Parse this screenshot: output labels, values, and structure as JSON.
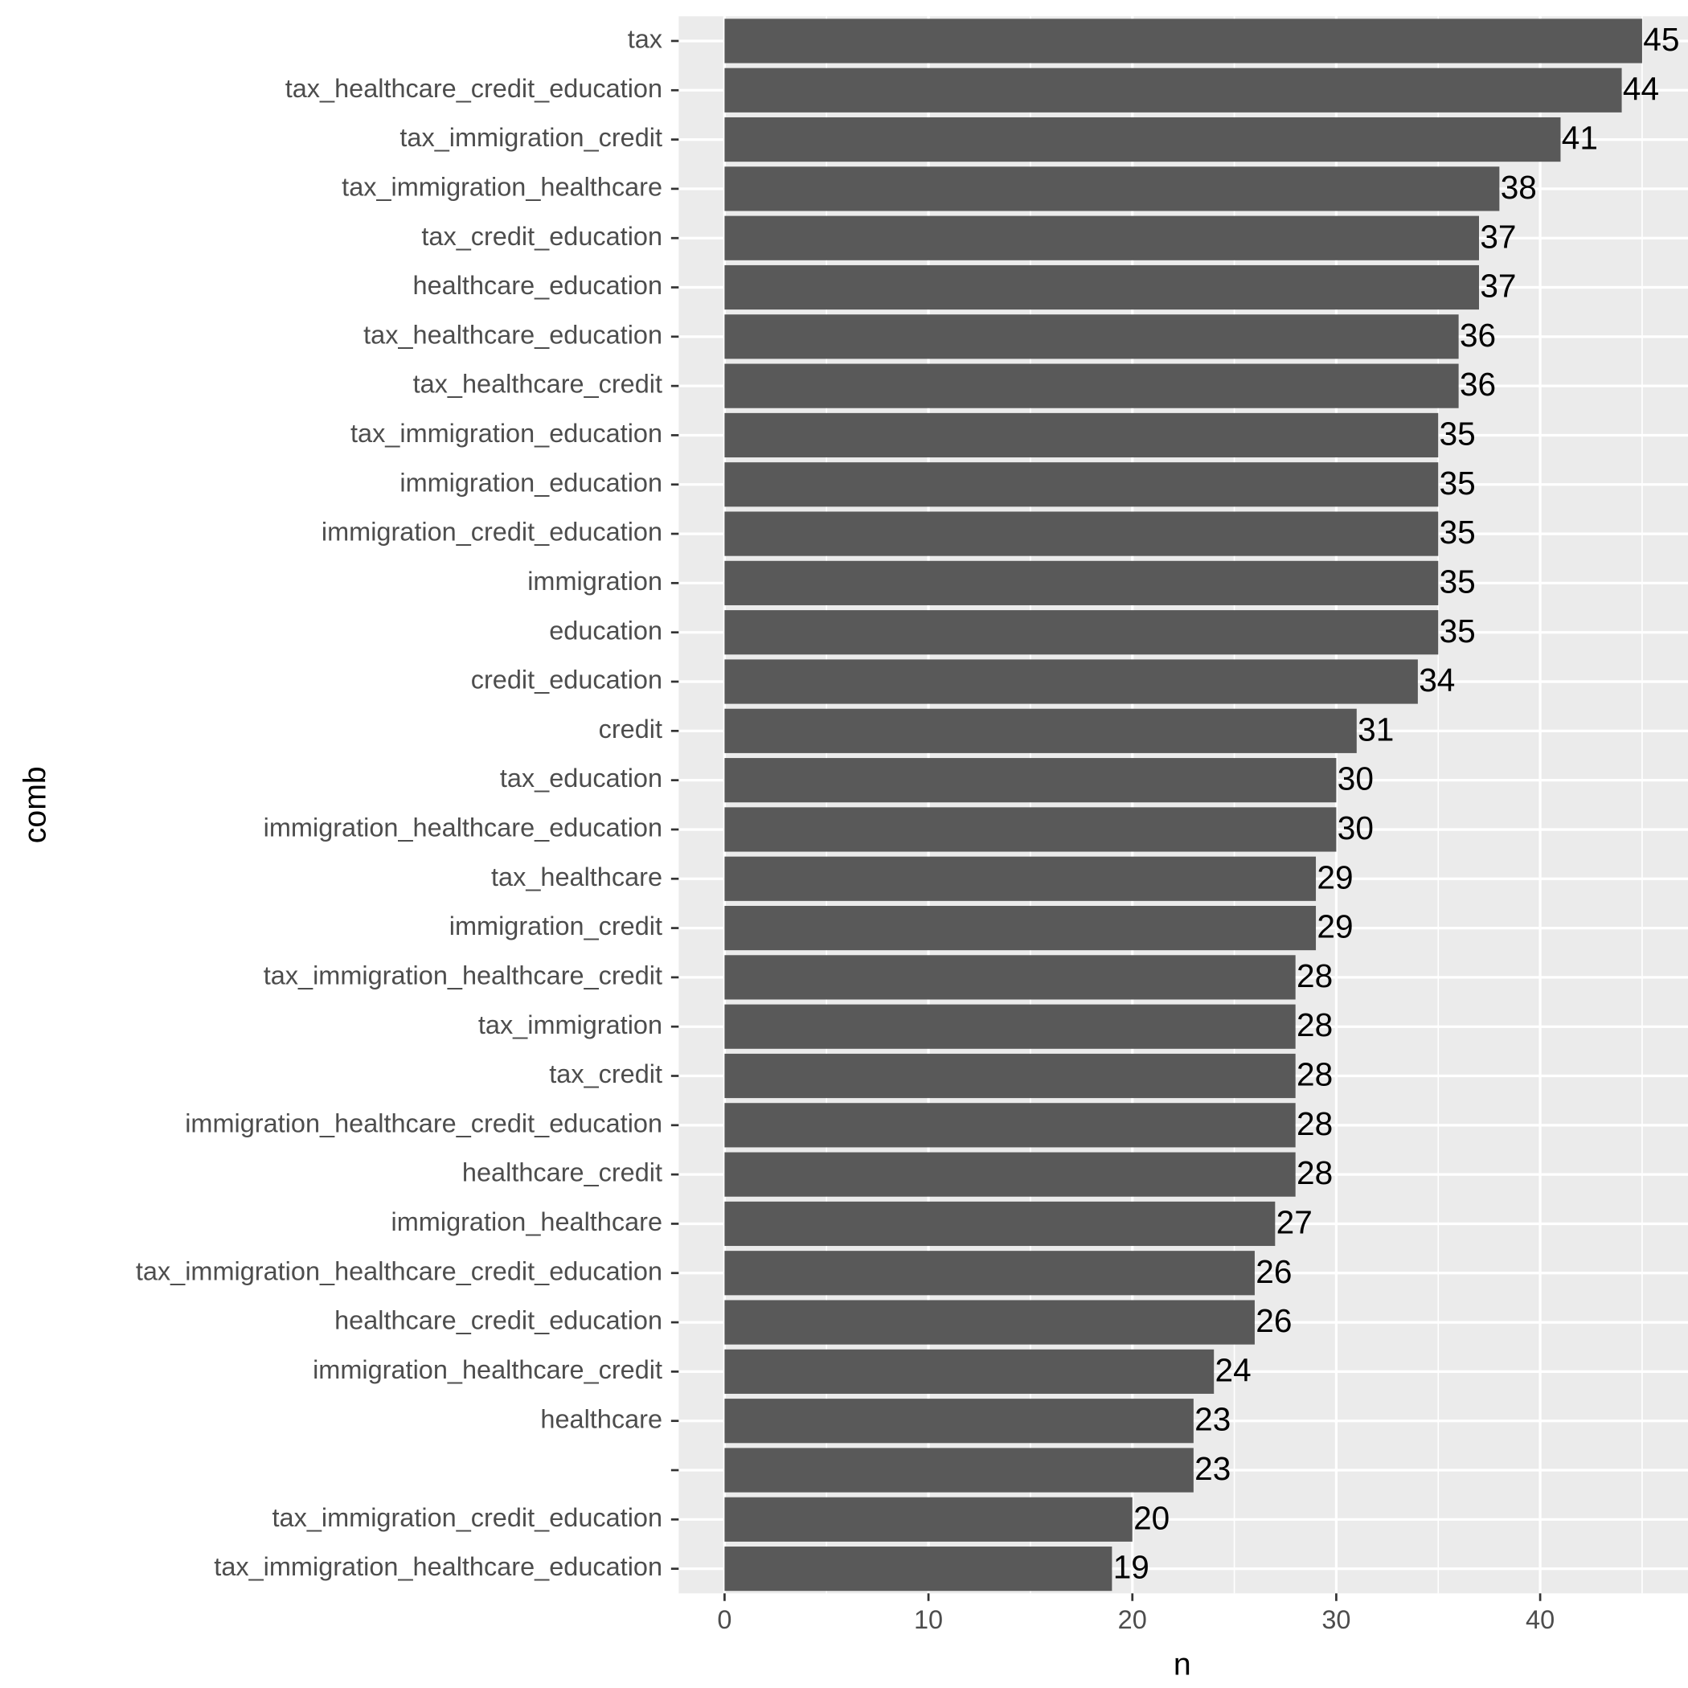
{
  "chart_data": {
    "type": "bar",
    "orientation": "horizontal",
    "x_label": "n",
    "y_label": "comb",
    "categories": [
      "tax",
      "tax_healthcare_credit_education",
      "tax_immigration_credit",
      "tax_immigration_healthcare",
      "tax_credit_education",
      "healthcare_education",
      "tax_healthcare_education",
      "tax_healthcare_credit",
      "tax_immigration_education",
      "immigration_education",
      "immigration_credit_education",
      "immigration",
      "education",
      "credit_education",
      "credit",
      "tax_education",
      "immigration_healthcare_education",
      "tax_healthcare",
      "immigration_credit",
      "tax_immigration_healthcare_credit",
      "tax_immigration",
      "tax_credit",
      "immigration_healthcare_credit_education",
      "healthcare_credit",
      "immigration_healthcare",
      "tax_immigration_healthcare_credit_education",
      "healthcare_credit_education",
      "immigration_healthcare_credit",
      "healthcare",
      null,
      "tax_immigration_credit_education",
      "tax_immigration_healthcare_education"
    ],
    "values": [
      45,
      44,
      41,
      38,
      37,
      37,
      36,
      36,
      35,
      35,
      35,
      35,
      35,
      34,
      31,
      30,
      30,
      29,
      29,
      28,
      28,
      28,
      28,
      28,
      27,
      26,
      26,
      24,
      23,
      23,
      20,
      19
    ],
    "color": "#595959",
    "xlim": [
      -2.25,
      47.25
    ],
    "xticks": [
      0,
      10,
      20,
      30,
      40
    ],
    "minor_xticks": [
      5,
      15,
      25,
      35,
      45
    ],
    "grid": true
  }
}
